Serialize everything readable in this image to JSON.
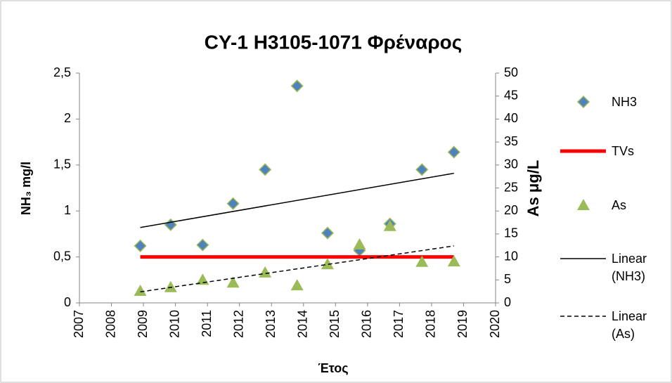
{
  "chart_data": {
    "type": "scatter",
    "title": "CY-1 H3105-1071 Φρέναρος",
    "x_label": "Έτος",
    "y_label": "NH₃ mg/l",
    "y2_label": "As μg/L",
    "xlim": [
      2007,
      2020
    ],
    "xticks": [
      2007,
      2008,
      2009,
      2010,
      2011,
      2012,
      2013,
      2014,
      2015,
      2016,
      2017,
      2018,
      2019,
      2020
    ],
    "ylim": [
      0,
      2.5
    ],
    "yticks": [
      0,
      {
        "value": 0.5,
        "label": "0,5"
      },
      1,
      {
        "value": 1.5,
        "label": "1,5"
      },
      2,
      {
        "value": 2.5,
        "label": "2,5"
      }
    ],
    "y2lim": [
      0,
      50
    ],
    "y2ticks": [
      0,
      5,
      10,
      15,
      20,
      25,
      30,
      35,
      40,
      45,
      50
    ],
    "grid": false,
    "legend": "right",
    "series": [
      {
        "name": "NH3",
        "marker": "diamond",
        "color": "#4f81bd",
        "x": [
          2008.9,
          2009.85,
          2010.85,
          2011.8,
          2012.8,
          2013.8,
          2014.75,
          2015.75,
          2016.7,
          2017.7,
          2018.7
        ],
        "values": [
          0.62,
          0.85,
          0.63,
          1.08,
          1.45,
          2.36,
          0.76,
          0.57,
          0.86,
          1.45,
          1.64
        ]
      },
      {
        "name": "TVs",
        "color": "#ff0000",
        "x": [
          2008.9,
          2018.7
        ],
        "values": [
          0.5,
          0.5
        ]
      },
      {
        "name": "As",
        "marker": "triangle",
        "color": "#9bbb59",
        "axis": "y2",
        "x": [
          2008.9,
          2009.85,
          2010.85,
          2011.8,
          2012.8,
          2013.8,
          2014.75,
          2015.75,
          2016.7,
          2017.7,
          2018.7
        ],
        "values": [
          2.6,
          3.4,
          5.0,
          4.4,
          6.6,
          3.8,
          8.4,
          12.7,
          16.7,
          8.9,
          9.0
        ]
      },
      {
        "name": "Linear (NH3)",
        "color": "#000000",
        "x": [
          2008.9,
          2018.7
        ],
        "values": [
          0.82,
          1.41
        ]
      },
      {
        "name": "Linear (As)",
        "color": "#000000",
        "dashed": true,
        "axis": "y2",
        "x": [
          2008.9,
          2018.7
        ],
        "values": [
          2.4,
          12.4
        ]
      }
    ]
  }
}
